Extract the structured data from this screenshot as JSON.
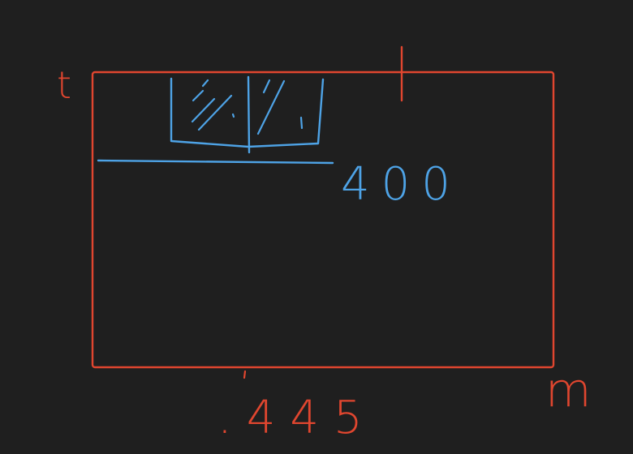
{
  "diagram": {
    "axis_labels": {
      "vertical": "t",
      "horizontal": "m"
    },
    "dimensions": {
      "bottom_measure": ".445",
      "level_value": "400"
    },
    "colors": {
      "background": "#1f1f1f",
      "rectangle_stroke": "#e0462f",
      "annotation_stroke": "#4ea3e6"
    }
  }
}
